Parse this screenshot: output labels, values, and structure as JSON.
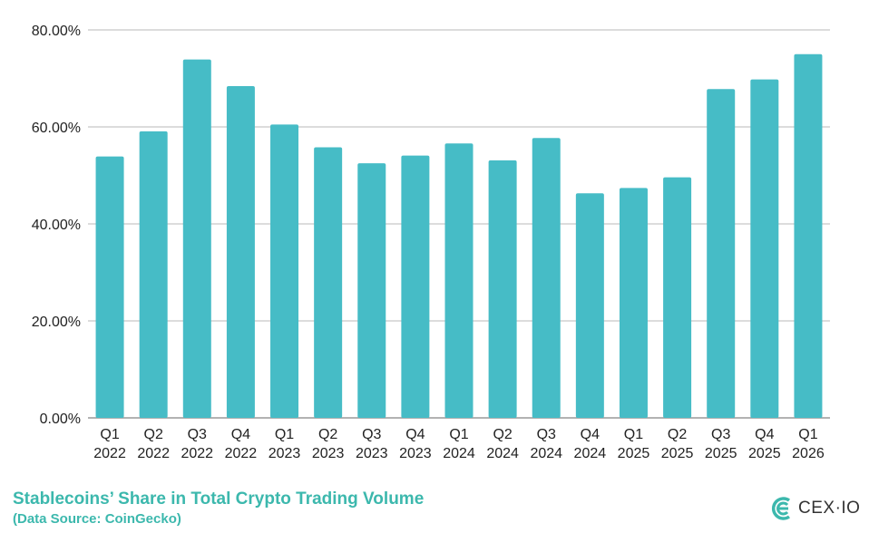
{
  "chart_data": {
    "type": "bar",
    "title": "Stablecoins’ Share in Total Crypto Trading Volume",
    "subtitle": "(Data Source: CoinGecko)",
    "categories": [
      [
        "Q1",
        "2022"
      ],
      [
        "Q2",
        "2022"
      ],
      [
        "Q3",
        "2022"
      ],
      [
        "Q4",
        "2022"
      ],
      [
        "Q1",
        "2023"
      ],
      [
        "Q2",
        "2023"
      ],
      [
        "Q3",
        "2023"
      ],
      [
        "Q4",
        "2023"
      ],
      [
        "Q1",
        "2024"
      ],
      [
        "Q2",
        "2024"
      ],
      [
        "Q3",
        "2024"
      ],
      [
        "Q4",
        "2024"
      ],
      [
        "Q1",
        "2025"
      ],
      [
        "Q2",
        "2025"
      ],
      [
        "Q3",
        "2025"
      ],
      [
        "Q4",
        "2025"
      ],
      [
        "Q1",
        "2026"
      ]
    ],
    "values": [
      53.9,
      59.1,
      73.9,
      68.4,
      60.5,
      55.8,
      52.5,
      54.1,
      56.6,
      53.1,
      57.7,
      46.3,
      47.4,
      49.6,
      67.8,
      69.8,
      75.0
    ],
    "ylim": [
      0,
      80
    ],
    "yticks": [
      0,
      20,
      40,
      60,
      80
    ],
    "ytick_labels": [
      "0.00%",
      "20.00%",
      "40.00%",
      "60.00%",
      "80.00%"
    ],
    "grid": true,
    "bar_color": "#46bcc6",
    "title_color": "#3cb8ad"
  },
  "logo": {
    "text": "CEX·IO",
    "color": "#3cb8ad"
  }
}
